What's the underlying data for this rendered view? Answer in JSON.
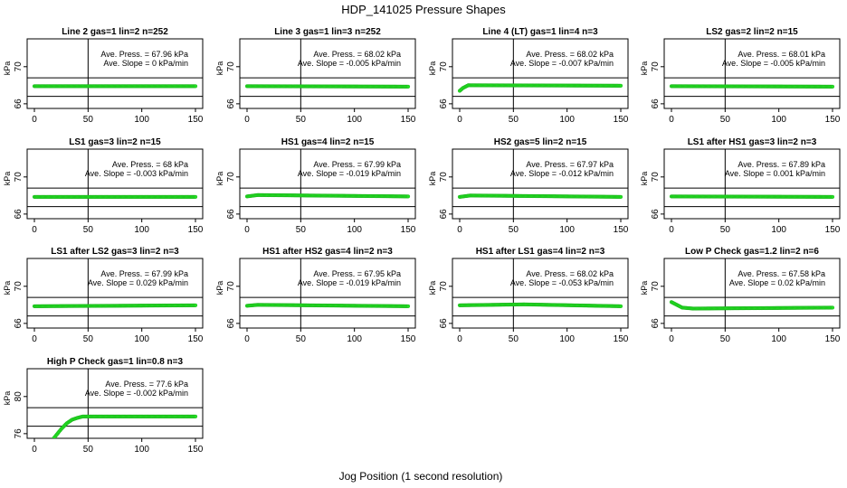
{
  "figure": {
    "title": "HDP_141025  Pressure Shapes",
    "xlabel": "Jog Position (1 second resolution)"
  },
  "style": {
    "point_color": "#22e122",
    "point_stroke": "#1aa81a",
    "line_color": "#000000"
  },
  "chart_data": [
    {
      "type": "scatter",
      "title": "Line 2 gas=1 lin=2 n=252",
      "ylabel": "kPa",
      "xlim": [
        0,
        150
      ],
      "ylim": [
        65.5,
        73
      ],
      "yticks": [
        66,
        70
      ],
      "xticks": [
        0,
        50,
        100,
        150
      ],
      "hlines": [
        66.8,
        68.8
      ],
      "vline": 50,
      "annotation": [
        "Ave. Press. = 67.96  kPa",
        "Ave. Slope = 0  kPa/min"
      ],
      "series": [
        {
          "x_start": 0,
          "x_end": 150,
          "y": [
            [
              0,
              67.9
            ],
            [
              150,
              67.9
            ]
          ]
        }
      ]
    },
    {
      "type": "scatter",
      "title": "Line 3 gas=1 lin=3 n=252",
      "ylabel": "kPa",
      "xlim": [
        0,
        150
      ],
      "ylim": [
        65.5,
        73
      ],
      "yticks": [
        66,
        70
      ],
      "xticks": [
        0,
        50,
        100,
        150
      ],
      "hlines": [
        66.8,
        68.8
      ],
      "vline": 50,
      "annotation": [
        "Ave. Press. = 68.02  kPa",
        "Ave. Slope = -0.005  kPa/min"
      ],
      "series": [
        {
          "x_start": 0,
          "x_end": 150,
          "y": [
            [
              0,
              67.9
            ],
            [
              150,
              67.85
            ]
          ]
        }
      ]
    },
    {
      "type": "scatter",
      "title": "Line 4 (LT) gas=1 lin=4 n=3",
      "ylabel": "kPa",
      "xlim": [
        0,
        150
      ],
      "ylim": [
        65.5,
        73
      ],
      "yticks": [
        66,
        70
      ],
      "xticks": [
        0,
        50,
        100,
        150
      ],
      "hlines": [
        66.8,
        68.8
      ],
      "vline": 50,
      "annotation": [
        "Ave. Press. = 68.02  kPa",
        "Ave. Slope = -0.007  kPa/min"
      ],
      "series": [
        {
          "x_start": 0,
          "x_end": 150,
          "y": [
            [
              0,
              67.4
            ],
            [
              3,
              67.7
            ],
            [
              8,
              68.0
            ],
            [
              150,
              67.95
            ]
          ]
        }
      ]
    },
    {
      "type": "scatter",
      "title": "LS2 gas=2 lin=2 n=15",
      "ylabel": "kPa",
      "xlim": [
        0,
        150
      ],
      "ylim": [
        65.5,
        73
      ],
      "yticks": [
        66,
        70
      ],
      "xticks": [
        0,
        50,
        100,
        150
      ],
      "hlines": [
        66.8,
        68.8
      ],
      "vline": 50,
      "annotation": [
        "Ave. Press. = 68.01  kPa",
        "Ave. Slope = -0.005  kPa/min"
      ],
      "series": [
        {
          "x_start": 0,
          "x_end": 150,
          "y": [
            [
              0,
              67.9
            ],
            [
              150,
              67.85
            ]
          ]
        }
      ]
    },
    {
      "type": "scatter",
      "title": "LS1 gas=3 lin=2 n=15",
      "ylabel": "kPa",
      "xlim": [
        0,
        150
      ],
      "ylim": [
        65.5,
        73
      ],
      "yticks": [
        66,
        70
      ],
      "xticks": [
        0,
        50,
        100,
        150
      ],
      "hlines": [
        66.8,
        68.8
      ],
      "vline": 50,
      "annotation": [
        "Ave. Press. = 68  kPa",
        "Ave. Slope = -0.003  kPa/min"
      ],
      "series": [
        {
          "x_start": 0,
          "x_end": 150,
          "y": [
            [
              0,
              67.85
            ],
            [
              150,
              67.85
            ]
          ]
        }
      ]
    },
    {
      "type": "scatter",
      "title": "HS1 gas=4 lin=2 n=15",
      "ylabel": "kPa",
      "xlim": [
        0,
        150
      ],
      "ylim": [
        65.5,
        73
      ],
      "yticks": [
        66,
        70
      ],
      "xticks": [
        0,
        50,
        100,
        150
      ],
      "hlines": [
        66.8,
        68.8
      ],
      "vline": 50,
      "annotation": [
        "Ave. Press. = 67.99  kPa",
        "Ave. Slope = -0.019  kPa/min"
      ],
      "series": [
        {
          "x_start": 0,
          "x_end": 150,
          "y": [
            [
              0,
              67.9
            ],
            [
              10,
              68.05
            ],
            [
              150,
              67.9
            ]
          ]
        }
      ]
    },
    {
      "type": "scatter",
      "title": "HS2 gas=5 lin=2 n=15",
      "ylabel": "kPa",
      "xlim": [
        0,
        150
      ],
      "ylim": [
        65.5,
        73
      ],
      "yticks": [
        66,
        70
      ],
      "xticks": [
        0,
        50,
        100,
        150
      ],
      "hlines": [
        66.8,
        68.8
      ],
      "vline": 50,
      "annotation": [
        "Ave. Press. = 67.97  kPa",
        "Ave. Slope = -0.012  kPa/min"
      ],
      "series": [
        {
          "x_start": 0,
          "x_end": 150,
          "y": [
            [
              0,
              67.85
            ],
            [
              10,
              68.0
            ],
            [
              150,
              67.85
            ]
          ]
        }
      ]
    },
    {
      "type": "scatter",
      "title": "LS1 after HS1 gas=3 lin=2 n=3",
      "ylabel": "kPa",
      "xlim": [
        0,
        150
      ],
      "ylim": [
        65.5,
        73
      ],
      "yticks": [
        66,
        70
      ],
      "xticks": [
        0,
        50,
        100,
        150
      ],
      "hlines": [
        66.8,
        68.8
      ],
      "vline": 50,
      "annotation": [
        "Ave. Press. = 67.89  kPa",
        "Ave. Slope = 0.001  kPa/min"
      ],
      "series": [
        {
          "x_start": 0,
          "x_end": 150,
          "y": [
            [
              0,
              67.9
            ],
            [
              150,
              67.85
            ]
          ]
        }
      ]
    },
    {
      "type": "scatter",
      "title": "LS1 after LS2 gas=3 lin=2 n=3",
      "ylabel": "kPa",
      "xlim": [
        0,
        150
      ],
      "ylim": [
        65.5,
        73
      ],
      "yticks": [
        66,
        70
      ],
      "xticks": [
        0,
        50,
        100,
        150
      ],
      "hlines": [
        66.8,
        68.8
      ],
      "vline": 50,
      "annotation": [
        "Ave. Press. = 67.99  kPa",
        "Ave. Slope = 0.029  kPa/min"
      ],
      "series": [
        {
          "x_start": 0,
          "x_end": 150,
          "y": [
            [
              0,
              67.85
            ],
            [
              150,
              67.95
            ]
          ]
        }
      ]
    },
    {
      "type": "scatter",
      "title": "HS1 after HS2 gas=4 lin=2 n=3",
      "ylabel": "kPa",
      "xlim": [
        0,
        150
      ],
      "ylim": [
        65.5,
        73
      ],
      "yticks": [
        66,
        70
      ],
      "xticks": [
        0,
        50,
        100,
        150
      ],
      "hlines": [
        66.8,
        68.8
      ],
      "vline": 50,
      "annotation": [
        "Ave. Press. = 67.95  kPa",
        "Ave. Slope = -0.019  kPa/min"
      ],
      "series": [
        {
          "x_start": 0,
          "x_end": 150,
          "y": [
            [
              0,
              67.9
            ],
            [
              10,
              68.0
            ],
            [
              150,
              67.85
            ]
          ]
        }
      ]
    },
    {
      "type": "scatter",
      "title": "HS1 after LS1 gas=4 lin=2 n=3",
      "ylabel": "kPa",
      "xlim": [
        0,
        150
      ],
      "ylim": [
        65.5,
        73
      ],
      "yticks": [
        66,
        70
      ],
      "xticks": [
        0,
        50,
        100,
        150
      ],
      "hlines": [
        66.8,
        68.8
      ],
      "vline": 50,
      "annotation": [
        "Ave. Press. = 68.02  kPa",
        "Ave. Slope = -0.053  kPa/min"
      ],
      "series": [
        {
          "x_start": 0,
          "x_end": 150,
          "y": [
            [
              0,
              67.95
            ],
            [
              60,
              68.05
            ],
            [
              150,
              67.85
            ]
          ]
        }
      ]
    },
    {
      "type": "scatter",
      "title": "Low P Check gas=1.2 lin=2 n=6",
      "ylabel": "kPa",
      "xlim": [
        0,
        150
      ],
      "ylim": [
        65.5,
        73
      ],
      "yticks": [
        66,
        70
      ],
      "xticks": [
        0,
        50,
        100,
        150
      ],
      "hlines": [
        66.8,
        68.8
      ],
      "vline": 50,
      "annotation": [
        "Ave. Press. = 67.58  kPa",
        "Ave. Slope = 0.02  kPa/min"
      ],
      "series": [
        {
          "x_start": 0,
          "x_end": 150,
          "y": [
            [
              0,
              68.3
            ],
            [
              5,
              68.0
            ],
            [
              10,
              67.7
            ],
            [
              20,
              67.6
            ],
            [
              150,
              67.7
            ]
          ]
        }
      ]
    },
    {
      "type": "scatter",
      "title": "High P Check gas=1 lin=0.8 n=3",
      "ylabel": "kPa",
      "xlim": [
        0,
        150
      ],
      "ylim": [
        75.5,
        83
      ],
      "yticks": [
        76,
        80
      ],
      "xticks": [
        0,
        50,
        100,
        150
      ],
      "hlines": [
        76.8,
        78.8
      ],
      "vline": 50,
      "annotation": [
        "Ave. Press. = 77.6  kPa",
        "Ave. Slope = -0.002  kPa/min"
      ],
      "series": [
        {
          "x_start": 18,
          "x_end": 150,
          "y": [
            [
              18,
              75.5
            ],
            [
              25,
              76.5
            ],
            [
              30,
              77.1
            ],
            [
              35,
              77.5
            ],
            [
              40,
              77.7
            ],
            [
              45,
              77.85
            ],
            [
              150,
              77.85
            ]
          ]
        }
      ]
    }
  ]
}
